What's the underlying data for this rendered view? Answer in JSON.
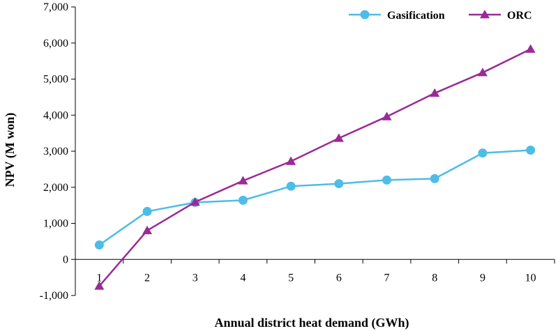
{
  "chart_data": {
    "type": "line",
    "title": "",
    "xlabel": "Annual district  heat demand  (GWh)",
    "ylabel": "NPV (M won)",
    "categories": [
      "1",
      "2",
      "3",
      "4",
      "5",
      "6",
      "7",
      "8",
      "9",
      "10"
    ],
    "ylim": [
      -1000,
      7000
    ],
    "yticks": [
      "-1,000",
      "0",
      "1,000",
      "2,000",
      "3,000",
      "4,000",
      "5,000",
      "6,000",
      "7,000"
    ],
    "grid": false,
    "legend_position": "top-right",
    "series": [
      {
        "name": "Gasification",
        "marker": "circle",
        "color": "#4dbde8",
        "values": [
          400,
          1330,
          1580,
          1640,
          2030,
          2100,
          2200,
          2240,
          2950,
          3030
        ]
      },
      {
        "name": "ORC",
        "marker": "triangle",
        "color": "#9b2a96",
        "values": [
          -740,
          800,
          1590,
          2180,
          2720,
          3360,
          3960,
          4610,
          5180,
          5830
        ]
      }
    ]
  }
}
